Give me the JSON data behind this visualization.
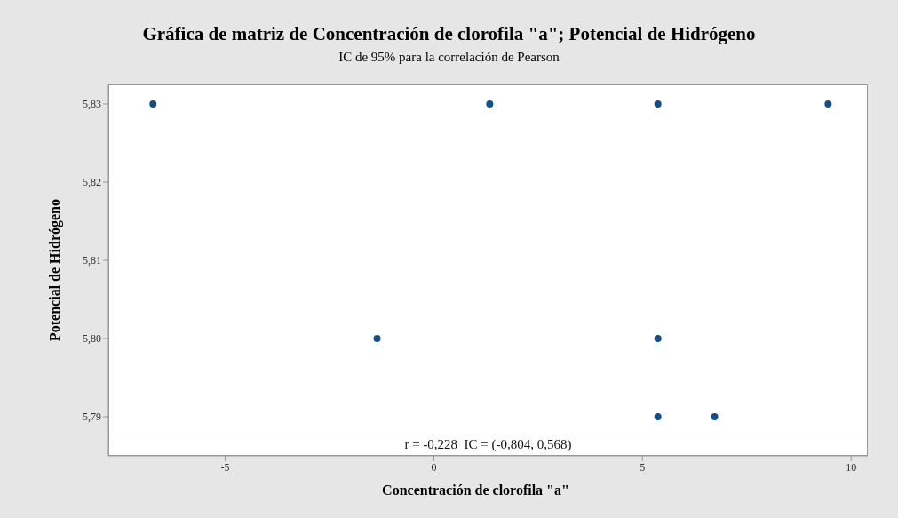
{
  "chart_data": {
    "type": "scatter",
    "title": "Gráfica de matriz de Concentración de clorofila \"a\"; Potencial de Hidrógeno",
    "subtitle": "IC de 95% para la correlación de Pearson",
    "xlabel": "Concentración de clorofila \"a\"",
    "ylabel": "Potencial de Hidrógeno",
    "annotations": [
      "r = -0,228  IC = (-0,804, 0,568)"
    ],
    "x": [
      -6.73,
      -1.36,
      1.34,
      5.37,
      5.37,
      5.37,
      6.73,
      9.45
    ],
    "series": [
      {
        "color": "#0e4f94",
        "values": [
          5.83,
          5.8,
          5.83,
          5.83,
          5.8,
          5.79,
          5.79,
          5.83
        ]
      }
    ],
    "xlim": [
      -7.8,
      10.4
    ],
    "xticks": [
      -5,
      0,
      5,
      10
    ],
    "ylim": [
      5.785,
      5.8325
    ],
    "yticks": [
      {
        "value": 5.79,
        "label": "5,79"
      },
      {
        "value": 5.8,
        "label": "5,80"
      },
      {
        "value": 5.81,
        "label": "5,81"
      },
      {
        "value": 5.82,
        "label": "5,82"
      },
      {
        "value": 5.83,
        "label": "5,83"
      }
    ],
    "grid": false,
    "legend": false,
    "marker": "circle"
  }
}
